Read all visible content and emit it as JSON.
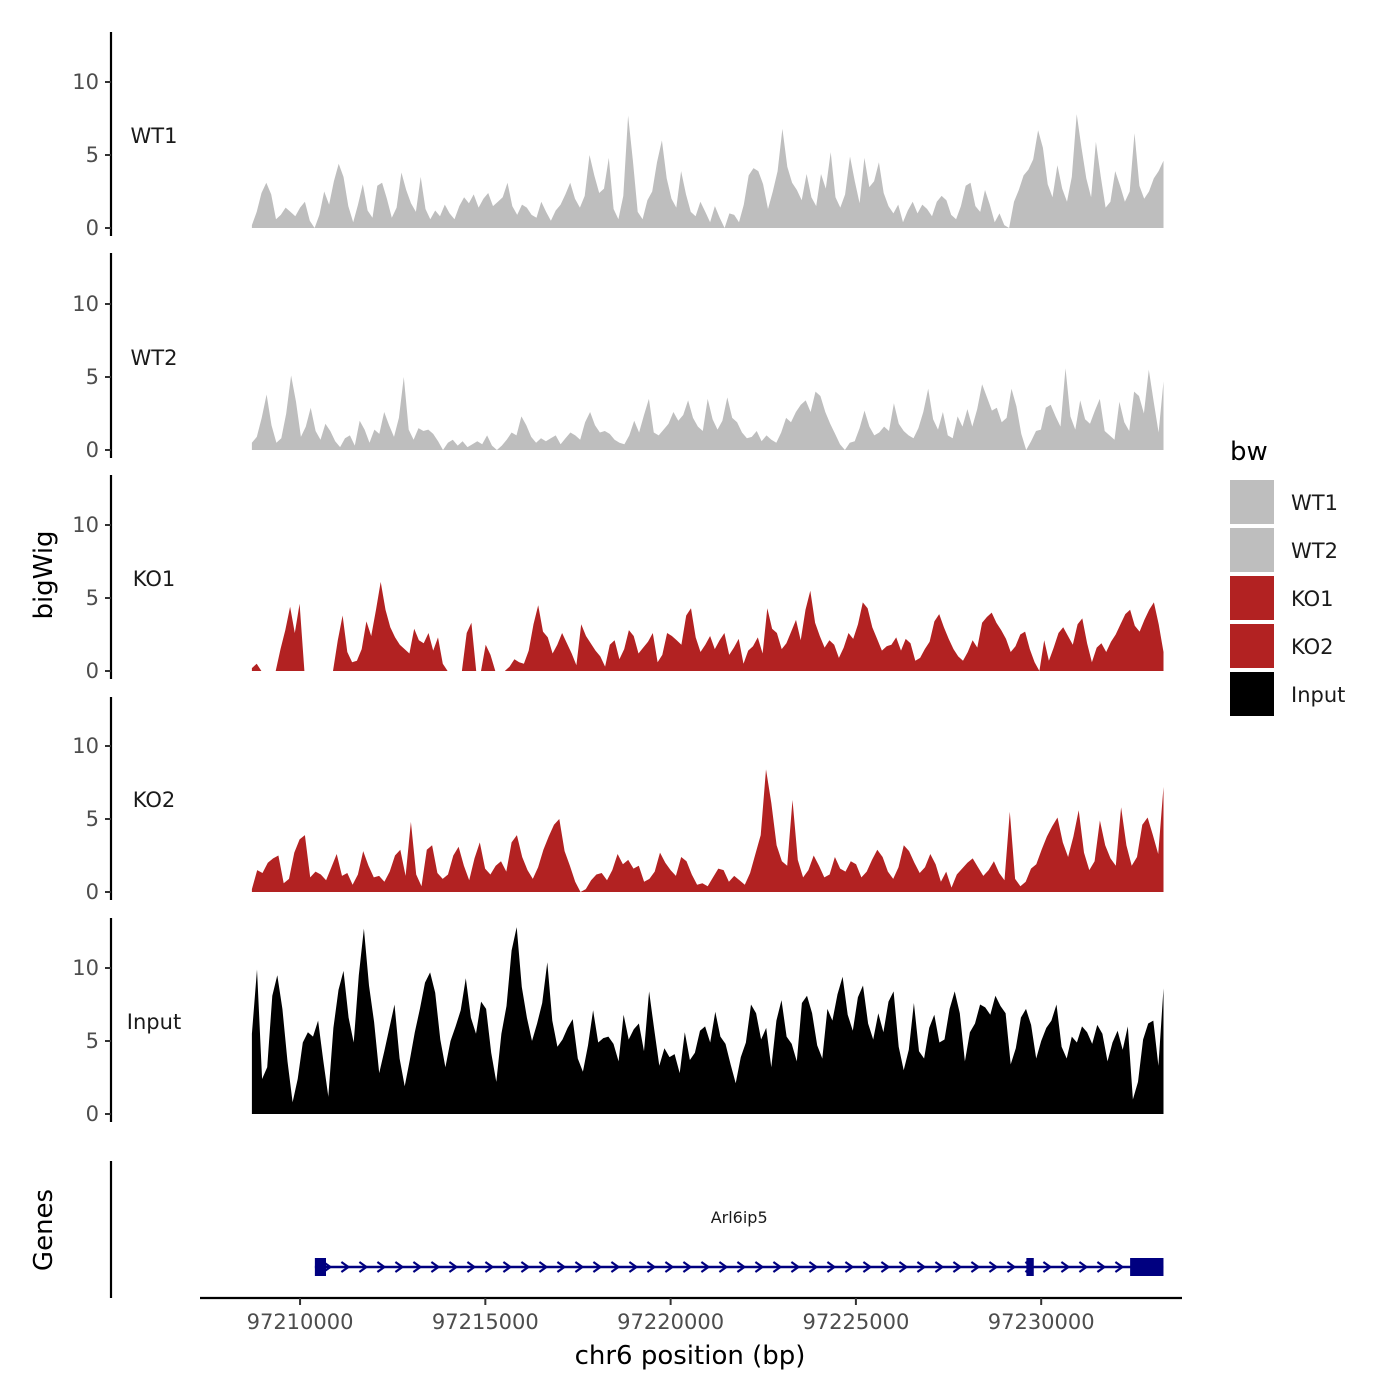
{
  "chart_data": {
    "type": "area",
    "chromosome": "chr6",
    "xlabel": "chr6 position (bp)",
    "ylabel": "bigWig",
    "xlim": [
      97207300,
      97233800
    ],
    "x_ticks": [
      97210000,
      97215000,
      97220000,
      97225000,
      97230000
    ],
    "x_tick_labels": [
      "97210000",
      "97215000",
      "97220000",
      "97225000",
      "97230000"
    ],
    "ylim": [
      0,
      13.5
    ],
    "y_ticks": [
      0,
      5,
      10
    ],
    "y_tick_labels": [
      "0",
      "5",
      "10"
    ],
    "track_range": [
      97208700,
      97233300
    ],
    "legend": {
      "title": "bw",
      "position": "right",
      "items": [
        {
          "label": "WT1",
          "color": "#bebebe"
        },
        {
          "label": "WT2",
          "color": "#bebebe"
        },
        {
          "label": "KO1",
          "color": "#b22222"
        },
        {
          "label": "KO2",
          "color": "#b22222"
        },
        {
          "label": "Input",
          "color": "#000000"
        }
      ]
    },
    "series": [
      {
        "name": "WT1",
        "color": "#bebebe",
        "values": [
          0.2,
          1.1,
          2.4,
          3.1,
          2.3,
          0.6,
          0.9,
          1.4,
          1.1,
          0.8,
          1.4,
          1.8,
          0.5,
          0,
          0.9,
          2.5,
          1.6,
          3.2,
          4.4,
          3.5,
          1.5,
          0.4,
          1.6,
          3.0,
          1.2,
          0.7,
          2.9,
          3.1,
          2.0,
          0.7,
          1.4,
          3.8,
          2.6,
          1.7,
          1.1,
          3.5,
          1.3,
          0.6,
          1.2,
          0.8,
          1.6,
          1.0,
          0.6,
          1.5,
          2.1,
          1.7,
          2.3,
          1.4,
          2.0,
          2.4,
          1.5,
          1.8,
          2.1,
          3.1,
          1.5,
          0.9,
          1.6,
          1.4,
          0.9,
          0.7,
          1.8,
          1.1,
          0.5,
          1.2,
          1.6,
          2.3,
          3.1,
          2.0,
          1.4,
          2.2,
          5.0,
          3.6,
          2.4,
          2.7,
          4.8,
          1.3,
          0.6,
          2.2,
          7.7,
          4.6,
          1.1,
          0.6,
          1.9,
          2.5,
          4.5,
          6.0,
          3.4,
          2.0,
          1.4,
          3.9,
          2.3,
          1.1,
          0.8,
          1.8,
          1.1,
          0.4,
          1.5,
          0.7,
          0,
          1.0,
          0.9,
          0.4,
          1.6,
          3.6,
          4.1,
          3.9,
          3.0,
          1.3,
          2.5,
          3.9,
          6.8,
          4.2,
          3.1,
          2.6,
          1.9,
          3.7,
          2.1,
          1.5,
          3.7,
          2.7,
          5.2,
          2.1,
          1.4,
          2.3,
          4.9,
          3.2,
          1.7,
          4.8,
          2.8,
          3.2,
          4.5,
          2.4,
          1.5,
          1.0,
          1.6,
          0.4,
          1.2,
          1.8,
          1.0,
          1.6,
          1.3,
          0.8,
          1.8,
          2.2,
          1.9,
          0.9,
          0.6,
          1.5,
          2.9,
          3.1,
          1.5,
          1.1,
          2.6,
          1.6,
          0.4,
          1.0,
          0.2,
          0,
          1.8,
          2.6,
          3.6,
          4.0,
          4.7,
          6.7,
          5.5,
          3.0,
          2.1,
          4.3,
          2.7,
          1.8,
          3.5,
          7.8,
          5.5,
          3.4,
          2.1,
          5.9,
          3.5,
          1.4,
          1.8,
          3.9,
          2.9,
          1.8,
          2.5,
          6.5,
          2.9,
          2.0,
          2.5,
          3.4,
          3.9,
          4.6
        ]
      },
      {
        "name": "WT2",
        "color": "#bebebe",
        "values": [
          0.5,
          0.9,
          2.2,
          3.8,
          1.7,
          0.5,
          0.8,
          2.5,
          5.1,
          3.3,
          0.9,
          1.6,
          2.9,
          1.3,
          0.7,
          1.8,
          1.3,
          0.6,
          0.2,
          0.8,
          1.0,
          0.3,
          2.0,
          1.4,
          0.5,
          1.4,
          1.1,
          2.6,
          1.7,
          0.9,
          2.2,
          5.0,
          1.4,
          0.7,
          1.5,
          1.3,
          1.4,
          1.1,
          0.6,
          0,
          0.5,
          0.7,
          0.3,
          0.6,
          0.2,
          0.4,
          0.6,
          0.4,
          1.0,
          0.3,
          0,
          0.3,
          0.7,
          1.2,
          1.0,
          2.3,
          1.7,
          0.9,
          0.5,
          0.8,
          0.6,
          0.8,
          1.0,
          0.4,
          0.8,
          1.2,
          1.0,
          0.7,
          1.9,
          2.6,
          1.7,
          1.2,
          1.3,
          1.1,
          0.7,
          0.5,
          0.4,
          1.0,
          2.0,
          1.2,
          2.4,
          3.5,
          1.2,
          1.0,
          1.4,
          1.8,
          2.6,
          2.0,
          2.4,
          3.4,
          2.2,
          1.6,
          1.3,
          3.5,
          2.1,
          1.4,
          2.0,
          3.6,
          2.2,
          1.9,
          1.2,
          0.8,
          0.9,
          1.3,
          0.6,
          1.0,
          0.7,
          0.5,
          1.2,
          2.2,
          1.9,
          2.6,
          3.1,
          3.4,
          2.6,
          4.0,
          3.7,
          2.6,
          1.8,
          1.1,
          0.4,
          0,
          0.5,
          0.6,
          1.5,
          2.7,
          1.6,
          1.0,
          1.2,
          1.6,
          1.3,
          3.2,
          1.8,
          1.3,
          1.0,
          0.8,
          1.5,
          2.6,
          4.2,
          2.1,
          1.4,
          2.6,
          1.0,
          0.8,
          2.3,
          1.6,
          2.8,
          1.6,
          2.8,
          4.5,
          3.6,
          2.7,
          2.9,
          1.9,
          2.2,
          4.2,
          3.0,
          1.1,
          0,
          0.6,
          1.3,
          1.4,
          2.9,
          3.1,
          2.3,
          1.6,
          5.6,
          2.3,
          1.4,
          3.4,
          2.1,
          1.8,
          2.7,
          3.5,
          1.3,
          1.0,
          0.7,
          3.3,
          1.9,
          1.3,
          4.0,
          3.7,
          2.5,
          5.5,
          3.3,
          1.2,
          4.7
        ]
      },
      {
        "name": "KO1",
        "color": "#b22222",
        "values": [
          0.2,
          0.5,
          0,
          0,
          0,
          0,
          1.5,
          2.8,
          4.4,
          2.6,
          4.6,
          0,
          0,
          0,
          0,
          0,
          0,
          0,
          2.1,
          3.8,
          1.3,
          0.6,
          0.7,
          1.5,
          3.4,
          2.4,
          4.2,
          6.1,
          4.2,
          3.0,
          2.3,
          1.8,
          1.5,
          1.2,
          2.9,
          2.1,
          1.9,
          2.6,
          1.4,
          2.3,
          0.5,
          0,
          0,
          0,
          0,
          2.6,
          3.3,
          0,
          0,
          1.8,
          1.1,
          0,
          0,
          0,
          0.3,
          0.8,
          0.6,
          0.5,
          1.4,
          3.2,
          4.5,
          2.7,
          2.3,
          1.2,
          1.8,
          2.6,
          1.9,
          1.2,
          0.4,
          3.2,
          2.4,
          1.9,
          1.4,
          1.0,
          0.3,
          1.8,
          2.1,
          0.8,
          1.5,
          2.8,
          2.4,
          1.2,
          1.6,
          2.0,
          2.6,
          0.6,
          1.1,
          2.6,
          2.4,
          2.1,
          1.8,
          3.8,
          4.3,
          2.3,
          1.3,
          1.8,
          2.4,
          1.5,
          2.1,
          2.6,
          1.1,
          1.6,
          2.2,
          0.5,
          1.4,
          1.7,
          2.3,
          1.2,
          4.3,
          2.9,
          2.6,
          1.5,
          1.9,
          2.7,
          3.5,
          2.1,
          4.2,
          5.5,
          3.3,
          2.4,
          1.6,
          2.1,
          1.8,
          0.9,
          1.6,
          2.6,
          2.2,
          3.2,
          4.7,
          4.3,
          3.0,
          2.2,
          1.4,
          1.7,
          1.8,
          2.3,
          1.4,
          2.2,
          1.9,
          0.7,
          0.9,
          1.5,
          2.0,
          3.4,
          3.9,
          3.0,
          2.2,
          1.5,
          1.0,
          0.7,
          1.3,
          2.1,
          1.6,
          3.3,
          3.7,
          4.0,
          3.3,
          2.8,
          2.2,
          1.3,
          1.7,
          2.5,
          2.7,
          1.5,
          0.6,
          0,
          2.1,
          0.7,
          1.6,
          2.6,
          3.0,
          2.4,
          1.8,
          3.2,
          3.6,
          1.9,
          0.6,
          1.6,
          1.9,
          1.3,
          2.0,
          2.5,
          3.2,
          3.9,
          4.2,
          3.1,
          2.7,
          3.5,
          4.2,
          4.7,
          3.2,
          1.3
        ]
      },
      {
        "name": "KO2",
        "color": "#b22222",
        "values": [
          0.2,
          1.5,
          1.3,
          2.0,
          2.3,
          2.5,
          0.6,
          0.9,
          2.7,
          3.6,
          3.9,
          1.0,
          1.4,
          1.2,
          0.8,
          1.7,
          2.6,
          1.1,
          1.3,
          0.5,
          1.2,
          2.8,
          1.8,
          1.0,
          1.1,
          0.7,
          1.4,
          2.5,
          2.9,
          1.1,
          4.8,
          1.2,
          0.4,
          2.9,
          3.2,
          1.3,
          0.9,
          1.2,
          2.5,
          3.1,
          1.8,
          0.8,
          2.3,
          3.4,
          1.6,
          1.2,
          1.8,
          2.1,
          1.4,
          3.4,
          3.9,
          2.4,
          1.5,
          0.9,
          1.7,
          2.9,
          3.8,
          4.6,
          5.0,
          2.8,
          1.8,
          0.7,
          0,
          0.2,
          0.8,
          1.2,
          1.3,
          0.8,
          1.5,
          2.6,
          1.9,
          2.2,
          1.6,
          1.8,
          0.7,
          0.9,
          1.4,
          2.7,
          2.0,
          1.5,
          1.1,
          2.4,
          2.1,
          1.2,
          0.5,
          0.6,
          0.4,
          1.0,
          1.6,
          1.5,
          0.7,
          1.1,
          0.8,
          0.5,
          1.3,
          2.6,
          3.9,
          8.4,
          6.1,
          3.2,
          2.1,
          1.8,
          6.3,
          2.2,
          1.0,
          1.5,
          2.5,
          1.8,
          1.0,
          1.2,
          2.4,
          1.6,
          1.4,
          2.1,
          1.9,
          1.0,
          1.4,
          2.2,
          2.9,
          2.4,
          1.4,
          0.9,
          1.7,
          3.2,
          2.8,
          2.0,
          1.3,
          1.7,
          2.6,
          1.9,
          0.7,
          1.4,
          0.3,
          1.2,
          1.6,
          2.0,
          2.3,
          1.7,
          1.1,
          1.5,
          2.1,
          1.3,
          0.8,
          5.5,
          0.9,
          0.4,
          0.7,
          1.6,
          1.9,
          2.9,
          3.8,
          4.5,
          5.1,
          3.4,
          2.4,
          3.8,
          5.6,
          2.7,
          1.5,
          2.1,
          4.9,
          3.2,
          2.3,
          1.8,
          5.8,
          3.2,
          1.8,
          2.4,
          4.6,
          5.1,
          3.9,
          2.6,
          7.2
        ]
      },
      {
        "name": "Input",
        "color": "#000000",
        "values": [
          5.5,
          9.9,
          2.4,
          3.2,
          8.1,
          9.5,
          7.2,
          3.6,
          0.8,
          2.4,
          4.9,
          5.6,
          5.3,
          6.4,
          3.7,
          1.2,
          5.9,
          8.5,
          9.8,
          6.6,
          4.9,
          9.5,
          12.7,
          8.8,
          6.3,
          2.8,
          4.3,
          5.9,
          7.5,
          3.8,
          1.9,
          3.7,
          5.6,
          7.2,
          9.0,
          9.7,
          8.3,
          5.1,
          3.2,
          5.0,
          6.0,
          7.1,
          9.3,
          6.6,
          5.5,
          7.7,
          7.2,
          4.2,
          2.2,
          5.5,
          7.4,
          11.2,
          12.8,
          8.7,
          6.6,
          5.0,
          6.2,
          7.6,
          10.4,
          6.4,
          4.6,
          5.1,
          5.9,
          6.5,
          3.8,
          2.9,
          4.7,
          7.1,
          4.9,
          5.2,
          5.3,
          4.8,
          3.6,
          6.8,
          5.1,
          5.8,
          6.2,
          4.3,
          8.4,
          5.8,
          3.3,
          4.5,
          3.9,
          4.1,
          2.8,
          5.6,
          3.7,
          4.2,
          5.7,
          6.0,
          4.9,
          7.0,
          5.3,
          4.8,
          3.4,
          2.1,
          3.9,
          4.9,
          7.5,
          6.9,
          5.1,
          5.9,
          3.2,
          6.4,
          7.8,
          5.3,
          4.8,
          3.6,
          7.6,
          8.1,
          6.9,
          4.7,
          3.8,
          7.2,
          6.4,
          8.2,
          9.4,
          6.8,
          5.7,
          8.0,
          8.8,
          6.2,
          5.1,
          6.9,
          5.6,
          7.7,
          8.4,
          4.6,
          3.0,
          4.4,
          7.6,
          4.3,
          3.8,
          5.9,
          6.8,
          4.9,
          5.1,
          7.2,
          8.4,
          6.9,
          3.6,
          5.6,
          6.2,
          7.5,
          7.3,
          6.8,
          8.1,
          7.4,
          6.9,
          3.4,
          4.5,
          6.6,
          7.2,
          6.1,
          3.8,
          5.0,
          5.9,
          6.4,
          7.5,
          4.6,
          3.8,
          5.3,
          4.9,
          6.0,
          5.6,
          4.8,
          6.1,
          5.5,
          3.6,
          4.9,
          5.7,
          4.4,
          6.0,
          1.0,
          2.2,
          5.1,
          6.2,
          6.4,
          3.3,
          8.6
        ]
      }
    ],
    "gene_track": {
      "title": "Genes",
      "gene": "Arl6ip5",
      "strand": "+",
      "start": 97210400,
      "end": 97233300,
      "exons": [
        {
          "start": 97210400,
          "end": 97210700
        },
        {
          "start": 97229600,
          "end": 97229800
        },
        {
          "start": 97232400,
          "end": 97233300
        }
      ]
    }
  }
}
